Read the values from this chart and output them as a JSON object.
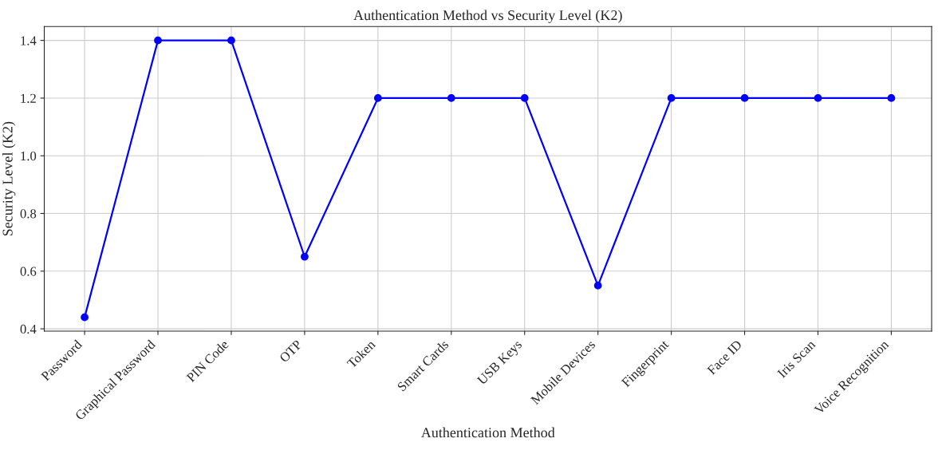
{
  "chart_data": {
    "type": "line",
    "title": "Authentication Method vs Security Level (K2)",
    "xlabel": "Authentication Method",
    "ylabel": "Security Level (K2)",
    "categories": [
      "Password",
      "Graphical Password",
      "PIN Code",
      "OTP",
      "Token",
      "Smart Cards",
      "USB Keys",
      "Mobile Devices",
      "Fingerprint",
      "Face ID",
      "Iris Scan",
      "Voice Recognition"
    ],
    "series": [
      {
        "color": "#0000ff",
        "values": [
          0.44,
          1.4,
          1.4,
          0.65,
          1.2,
          1.2,
          1.2,
          0.55,
          1.2,
          1.2,
          1.2,
          1.2
        ]
      }
    ],
    "ylim": [
      0.392,
      1.448
    ],
    "yticks": [
      {
        "value": 0.4,
        "label": "0.4"
      },
      {
        "value": 0.6,
        "label": "0.6"
      },
      {
        "value": 0.8,
        "label": "0.8"
      },
      {
        "value": 1.0,
        "label": "1.0"
      },
      {
        "value": 1.2,
        "label": "1.2"
      },
      {
        "value": 1.4,
        "label": "1.4"
      }
    ],
    "grid": true,
    "marker": "circle",
    "line_style": "solid"
  }
}
